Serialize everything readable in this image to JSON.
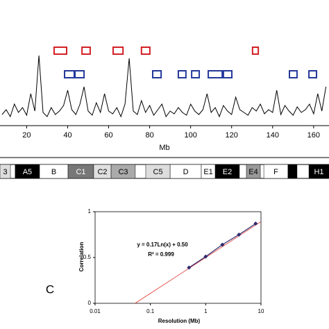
{
  "chart_data": [
    {
      "type": "line",
      "xlabel": "Mb",
      "xlim": [
        7,
        167.5
      ],
      "ylim": [
        0,
        1
      ],
      "color": "#000000",
      "x": [
        8,
        10,
        12,
        14,
        16,
        18,
        20,
        22,
        24,
        26,
        28,
        30,
        32,
        34,
        36,
        38,
        40,
        42,
        44,
        46,
        48,
        50,
        52,
        54,
        56,
        58,
        60,
        62,
        64,
        66,
        68,
        70,
        72,
        74,
        76,
        78,
        80,
        82,
        84,
        86,
        88,
        90,
        92,
        94,
        96,
        98,
        100,
        102,
        104,
        106,
        108,
        110,
        112,
        114,
        116,
        118,
        120,
        122,
        124,
        126,
        128,
        130,
        132,
        134,
        136,
        138,
        140,
        142,
        144,
        146,
        148,
        150,
        152,
        154,
        156,
        158,
        160,
        162,
        164,
        166
      ],
      "values": [
        0.15,
        0.22,
        0.12,
        0.3,
        0.18,
        0.25,
        0.14,
        0.45,
        0.2,
        1.0,
        0.18,
        0.12,
        0.25,
        0.15,
        0.2,
        0.28,
        0.5,
        0.22,
        0.15,
        0.3,
        0.55,
        0.2,
        0.14,
        0.32,
        0.18,
        0.45,
        0.2,
        0.16,
        0.25,
        0.12,
        0.3,
        0.96,
        0.2,
        0.15,
        0.35,
        0.18,
        0.28,
        0.14,
        0.22,
        0.3,
        0.12,
        0.2,
        0.16,
        0.25,
        0.18,
        0.14,
        0.3,
        0.2,
        0.15,
        0.22,
        0.45,
        0.18,
        0.25,
        0.12,
        0.28,
        0.2,
        0.15,
        0.4,
        0.22,
        0.18,
        0.14,
        0.25,
        0.2,
        0.3,
        0.16,
        0.22,
        0.18,
        0.5,
        0.15,
        0.28,
        0.2,
        0.14,
        0.26,
        0.18,
        0.22,
        0.3,
        0.16,
        0.45,
        0.2,
        0.55
      ],
      "xticks": [
        20,
        40,
        60,
        80,
        100,
        120,
        140,
        160
      ],
      "region_sets": [
        {
          "color": "#d21f26",
          "intervals": [
            [
              33.4,
              39.5
            ],
            [
              47,
              51
            ],
            [
              62.2,
              67
            ],
            [
              76,
              80.1
            ],
            [
              130.2,
              133
            ]
          ]
        },
        {
          "color": "#23389a",
          "intervals": [
            [
              38.5,
              43.2
            ],
            [
              43.6,
              48
            ],
            [
              81.5,
              85.6
            ],
            [
              94,
              97.7
            ],
            [
              100.5,
              104.2
            ],
            [
              108.6,
              115.4
            ],
            [
              116,
              120.1
            ],
            [
              148.2,
              151.9
            ],
            [
              157.7,
              161.4
            ]
          ]
        }
      ]
    },
    {
      "type": "ideogram",
      "xlim": [
        7,
        167.5
      ],
      "bands": [
        {
          "label": "3",
          "start": 7,
          "end": 12.1,
          "color": "#dddddd"
        },
        {
          "label": "A5",
          "start": 14.4,
          "end": 26.3,
          "color": "#000000"
        },
        {
          "label": "B",
          "start": 26.3,
          "end": 40.2,
          "color": "#ffffff"
        },
        {
          "label": "C1",
          "start": 40.2,
          "end": 52.7,
          "color": "#777777"
        },
        {
          "label": "C2",
          "start": 52.7,
          "end": 61.2,
          "color": "#e0e0e0"
        },
        {
          "label": "C3",
          "start": 61.2,
          "end": 73,
          "color": "#aaaaaa"
        },
        {
          "label": "C5",
          "start": 78.1,
          "end": 90,
          "color": "#dddddd"
        },
        {
          "label": "D",
          "start": 90,
          "end": 105.2,
          "color": "#ffffff"
        },
        {
          "label": "E1",
          "start": 105.2,
          "end": 112,
          "color": "#ffffff"
        },
        {
          "label": "E2",
          "start": 112,
          "end": 123.8,
          "color": "#000000"
        },
        {
          "label": "E4",
          "start": 127.2,
          "end": 134,
          "color": "#999999"
        },
        {
          "label": "F",
          "start": 135.7,
          "end": 147.5,
          "color": "#ffffff"
        },
        {
          "label": null,
          "start": 147.5,
          "end": 151.9,
          "color": "#000000"
        },
        {
          "label": "H1",
          "start": 157.7,
          "end": 167.5,
          "color": "#000000"
        }
      ]
    },
    {
      "type": "scatter",
      "panel_label": "C",
      "xlabel": "Resolution (Mb)",
      "ylabel": "Correlation",
      "log_x": true,
      "xlim": [
        0.01,
        10
      ],
      "ylim": [
        0,
        1
      ],
      "xticks": [
        0.01,
        0.1,
        1,
        10
      ],
      "yticks": [
        0,
        0.5,
        1
      ],
      "x": [
        0.5,
        1,
        2,
        4,
        8
      ],
      "values": [
        0.39,
        0.51,
        0.64,
        0.75,
        0.87
      ],
      "color": "#2e2a6e",
      "fit": {
        "slope": 0.17,
        "intercept": 0.5,
        "color": "#e0302a",
        "label": "y = 0.17Ln(x) + 0.50",
        "r2_label": "R² = 0.999"
      }
    }
  ]
}
